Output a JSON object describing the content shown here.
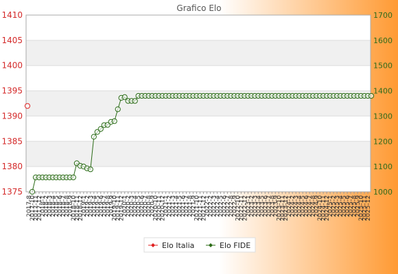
{
  "background": {
    "left": "#ffffff",
    "right": "#ff9a33"
  },
  "colors": {
    "elo_italia": "#e02020",
    "elo_fide": "#2a6b16",
    "grid_band": "#f0f0f0",
    "left_axis_text": "#d42a2a",
    "right_axis_text": "#2f6b1c"
  },
  "chart_data": {
    "type": "line",
    "title": "Grafico Elo",
    "grid": true,
    "legend_position": "bottom",
    "y_left": {
      "min": 1375,
      "max": 1410,
      "ticks": [
        1375,
        1380,
        1385,
        1390,
        1395,
        1400,
        1405,
        1410
      ]
    },
    "y_right": {
      "min": 1000,
      "max": 1700,
      "ticks": [
        1000,
        1100,
        1200,
        1300,
        1400,
        1500,
        1600,
        1700
      ]
    },
    "x_labels": [
      "2017-8",
      "2017-10",
      "2017-11",
      "2017-12",
      "2018-1",
      "2018-2",
      "2018-3",
      "2018-4",
      "2018-5",
      "2018-6",
      "2018-7",
      "2018-8",
      "2018-9",
      "2018-10",
      "2018-11",
      "2018-12",
      "2019-1",
      "2019-2",
      "2019-3",
      "2019-4",
      "2019-5",
      "2019-6",
      "2019-7",
      "2019-8",
      "2019-9",
      "2019-10",
      "2019-11",
      "2019-12",
      "2020-1",
      "2020-2",
      "2020-3",
      "2020-4",
      "2020-5",
      "2020-6",
      "2020-7",
      "2020-8",
      "2020-9",
      "2020-10",
      "2020-11",
      "2020-12",
      "2021-1",
      "2021-2",
      "2021-3",
      "2021-4",
      "2021-5",
      "2021-6",
      "2021-7",
      "2021-8",
      "2021-9",
      "2021-10",
      "2021-11",
      "2021-12",
      "2022-1",
      "2022-2",
      "2022-3",
      "2022-4",
      "2022-5",
      "2022-6",
      "2022-7",
      "2022-8",
      "2022-9",
      "2022-10",
      "2022-11",
      "2022-12",
      "2023-1",
      "2023-2",
      "2023-3",
      "2023-4",
      "2023-5",
      "2023-6",
      "2023-7",
      "2023-8",
      "2023-9",
      "2023-10",
      "2023-11",
      "2023-12",
      "2024-1",
      "2024-2",
      "2024-3",
      "2024-4",
      "2024-5",
      "2024-6",
      "2024-7",
      "2024-8",
      "2024-9",
      "2024-10",
      "2024-11",
      "2024-12",
      "2025-1",
      "2025-2",
      "2025-3",
      "2025-4",
      "2025-5",
      "2025-6",
      "2025-7",
      "2025-8",
      "2025-9",
      "2025-10",
      "2025-11",
      "2025-12"
    ],
    "series": [
      {
        "name": "Elo Italia",
        "axis": "left",
        "color": "#e02020",
        "points": [
          {
            "index": 0,
            "value": 1392
          }
        ]
      },
      {
        "name": "Elo FIDE",
        "axis": "right",
        "color": "#2a6b16",
        "values": [
          1000,
          1057,
          1057,
          1057,
          1057,
          1057,
          1057,
          1057,
          1057,
          1057,
          1057,
          1057,
          1057,
          1113,
          1103,
          1100,
          1093,
          1089,
          1218,
          1237,
          1249,
          1264,
          1265,
          1277,
          1280,
          1327,
          1372,
          1375,
          1360,
          1360,
          1360,
          1380,
          1380,
          1380,
          1380,
          1380,
          1380,
          1380,
          1380,
          1380,
          1380,
          1380,
          1380,
          1380,
          1380,
          1380,
          1380,
          1380,
          1380,
          1380,
          1380,
          1380,
          1380,
          1380,
          1380,
          1380,
          1380,
          1380,
          1380,
          1380,
          1380,
          1380,
          1380,
          1380,
          1380,
          1380,
          1380,
          1380,
          1380,
          1380,
          1380,
          1380,
          1380,
          1380,
          1380,
          1380,
          1380,
          1380,
          1380,
          1380,
          1380,
          1380,
          1380,
          1380,
          1380,
          1380,
          1380,
          1380,
          1380,
          1380,
          1380,
          1380,
          1380,
          1380,
          1380,
          1380,
          1380,
          1380,
          1380,
          1380
        ],
        "start_index": 1
      }
    ]
  },
  "legend": {
    "items": [
      {
        "label": "Elo Italia"
      },
      {
        "label": "Elo FIDE"
      }
    ]
  }
}
